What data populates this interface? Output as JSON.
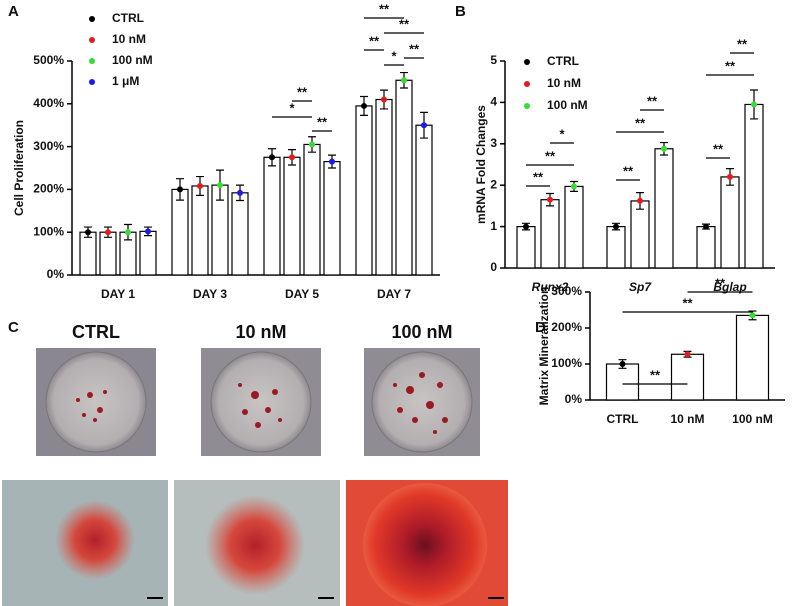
{
  "chart_data": [
    {
      "type": "bar",
      "panel": "A",
      "y_label": "Cell Proliferation",
      "categories": [
        "DAY 1",
        "DAY 3",
        "DAY 5",
        "DAY 7"
      ],
      "series": [
        {
          "name": "CTRL",
          "color": "#000000",
          "values": [
            100,
            200,
            275,
            395
          ],
          "errors": [
            12,
            25,
            20,
            22
          ]
        },
        {
          "name": "10 nM",
          "color": "#e41a1c",
          "values": [
            100,
            208,
            275,
            410
          ],
          "errors": [
            12,
            22,
            18,
            22
          ]
        },
        {
          "name": "100 nM",
          "color": "#33dd33",
          "values": [
            100,
            210,
            305,
            455
          ],
          "errors": [
            18,
            35,
            18,
            18
          ]
        },
        {
          "name": "1 μM",
          "color": "#1a1aee",
          "values": [
            102,
            192,
            265,
            350
          ],
          "errors": [
            10,
            18,
            15,
            30
          ]
        }
      ],
      "ylim": [
        0,
        500
      ],
      "yticks": [
        {
          "value": 0,
          "label": "0%"
        },
        {
          "value": 100,
          "label": "100%"
        },
        {
          "value": 200,
          "label": "200%"
        },
        {
          "value": 300,
          "label": "300%"
        },
        {
          "value": 400,
          "label": "400%"
        },
        {
          "value": 500,
          "label": "500%"
        }
      ],
      "annotations": [
        "**",
        "*",
        "**",
        "**",
        "**",
        "**",
        "**",
        "*"
      ]
    },
    {
      "type": "bar",
      "panel": "B",
      "y_label": "mRNA Fold Changes",
      "categories": [
        "Runx2",
        "Sp7",
        "Bglap"
      ],
      "series": [
        {
          "name": "CTRL",
          "color": "#000000",
          "values": [
            1.0,
            1.0,
            1.0
          ],
          "errors": [
            0.08,
            0.08,
            0.06
          ]
        },
        {
          "name": "10 nM",
          "color": "#e41a1c",
          "values": [
            1.65,
            1.62,
            2.2
          ],
          "errors": [
            0.15,
            0.2,
            0.2
          ]
        },
        {
          "name": "100 nM",
          "color": "#33dd33",
          "values": [
            1.97,
            2.88,
            3.95
          ],
          "errors": [
            0.12,
            0.15,
            0.35
          ]
        }
      ],
      "ylim": [
        0,
        5
      ],
      "yticks": [
        0,
        1,
        2,
        3,
        4,
        5
      ],
      "annotations": [
        "**",
        "**",
        "*",
        "**",
        "**",
        "**",
        "**",
        "**",
        "**"
      ]
    },
    {
      "type": "bar",
      "panel": "D",
      "y_label": "Matrix Mineralization",
      "categories": [
        "CTRL",
        "10 nM",
        "100 nM"
      ],
      "values": [
        100,
        127,
        235
      ],
      "errors": [
        12,
        8,
        12
      ],
      "colors": [
        "#000000",
        "#e41a1c",
        "#33dd33"
      ],
      "ylim": [
        0,
        300
      ],
      "yticks": [
        {
          "value": 0,
          "label": "0%"
        },
        {
          "value": 100,
          "label": "100%"
        },
        {
          "value": 200,
          "label": "200%"
        },
        {
          "value": 300,
          "label": "300%"
        }
      ],
      "annotations": [
        "**",
        "**",
        "**"
      ]
    }
  ],
  "photos": {
    "panel": "C",
    "labels": [
      "CTRL",
      "10 nM",
      "100 nM"
    ]
  }
}
